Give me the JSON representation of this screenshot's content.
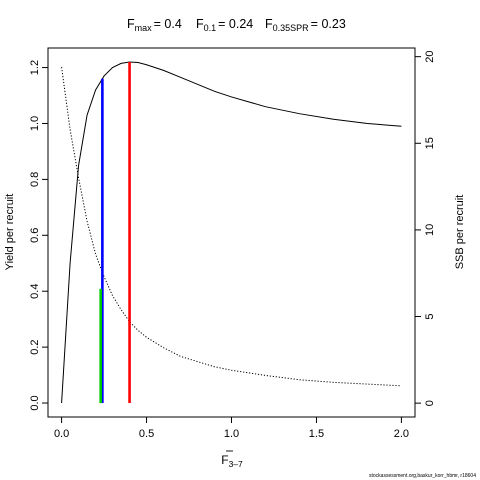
{
  "chart_data": {
    "type": "line",
    "title": {
      "fmax": {
        "sym": "F",
        "sub": "max",
        "value": "= 0.4"
      },
      "f01": {
        "sym": "F",
        "sub": "0.1",
        "value": "= 0.24"
      },
      "f35": {
        "sym": "F",
        "sub": "0.35SPR",
        "value": "= 0.23"
      }
    },
    "xlabel": {
      "sym": "F",
      "sub": "3–7"
    },
    "ylabel_left": "Yield per recruit",
    "ylabel_right": "SSB per recruit",
    "xlim": [
      -0.08,
      2.08
    ],
    "ylim_left": [
      -0.05,
      1.27
    ],
    "ylim_right": [
      -0.8,
      20.5
    ],
    "x_ticks": [
      0,
      0.5,
      1,
      1.5,
      2
    ],
    "x_tick_labels": [
      "0.0",
      "0.5",
      "1.0",
      "1.5",
      "2.0"
    ],
    "y_left_ticks": [
      0,
      0.2,
      0.4,
      0.6,
      0.8,
      1.0,
      1.2
    ],
    "y_left_tick_labels": [
      "0.0",
      "0.2",
      "0.4",
      "0.6",
      "0.8",
      "1.0",
      "1.2"
    ],
    "y_right_ticks": [
      0,
      5,
      10,
      15,
      20
    ],
    "y_right_tick_labels": [
      "0",
      "5",
      "10",
      "15",
      "20"
    ],
    "grid": false,
    "series": [
      {
        "axis": "left",
        "style": "solid",
        "x": [
          0,
          0.05,
          0.1,
          0.15,
          0.2,
          0.25,
          0.3,
          0.35,
          0.4,
          0.45,
          0.5,
          0.6,
          0.7,
          0.8,
          0.9,
          1.0,
          1.2,
          1.4,
          1.6,
          1.8,
          2.0
        ],
        "y": [
          0,
          0.5,
          0.85,
          1.03,
          1.12,
          1.17,
          1.2,
          1.215,
          1.22,
          1.218,
          1.21,
          1.19,
          1.165,
          1.14,
          1.115,
          1.095,
          1.06,
          1.035,
          1.015,
          1.0,
          0.99
        ]
      },
      {
        "axis": "right",
        "style": "dotted",
        "x": [
          0,
          0.05,
          0.1,
          0.15,
          0.2,
          0.25,
          0.3,
          0.35,
          0.4,
          0.45,
          0.5,
          0.6,
          0.7,
          0.8,
          0.9,
          1.0,
          1.2,
          1.4,
          1.6,
          1.8,
          2.0
        ],
        "y": [
          19.4,
          15.8,
          13.0,
          10.5,
          8.6,
          7.3,
          6.2,
          5.4,
          4.7,
          4.2,
          3.8,
          3.2,
          2.7,
          2.4,
          2.1,
          1.9,
          1.6,
          1.35,
          1.2,
          1.1,
          1.0
        ]
      }
    ],
    "reference_lines": [
      {
        "name": "fmax-line",
        "x": 0.4,
        "y_from": 0,
        "y_to": 1.22,
        "axis": "left",
        "color": "#ff0000"
      },
      {
        "name": "f01-line",
        "x": 0.24,
        "y_from": 0,
        "y_to": 1.16,
        "axis": "left",
        "color": "#0000ff"
      },
      {
        "name": "f35spr-line",
        "x": 0.23,
        "y_from": 0,
        "y_to": 6.6,
        "axis": "right",
        "color": "#00cd00"
      }
    ]
  },
  "footer_text": "stockassessment.org,baskur_korr_hbmr, r18604"
}
